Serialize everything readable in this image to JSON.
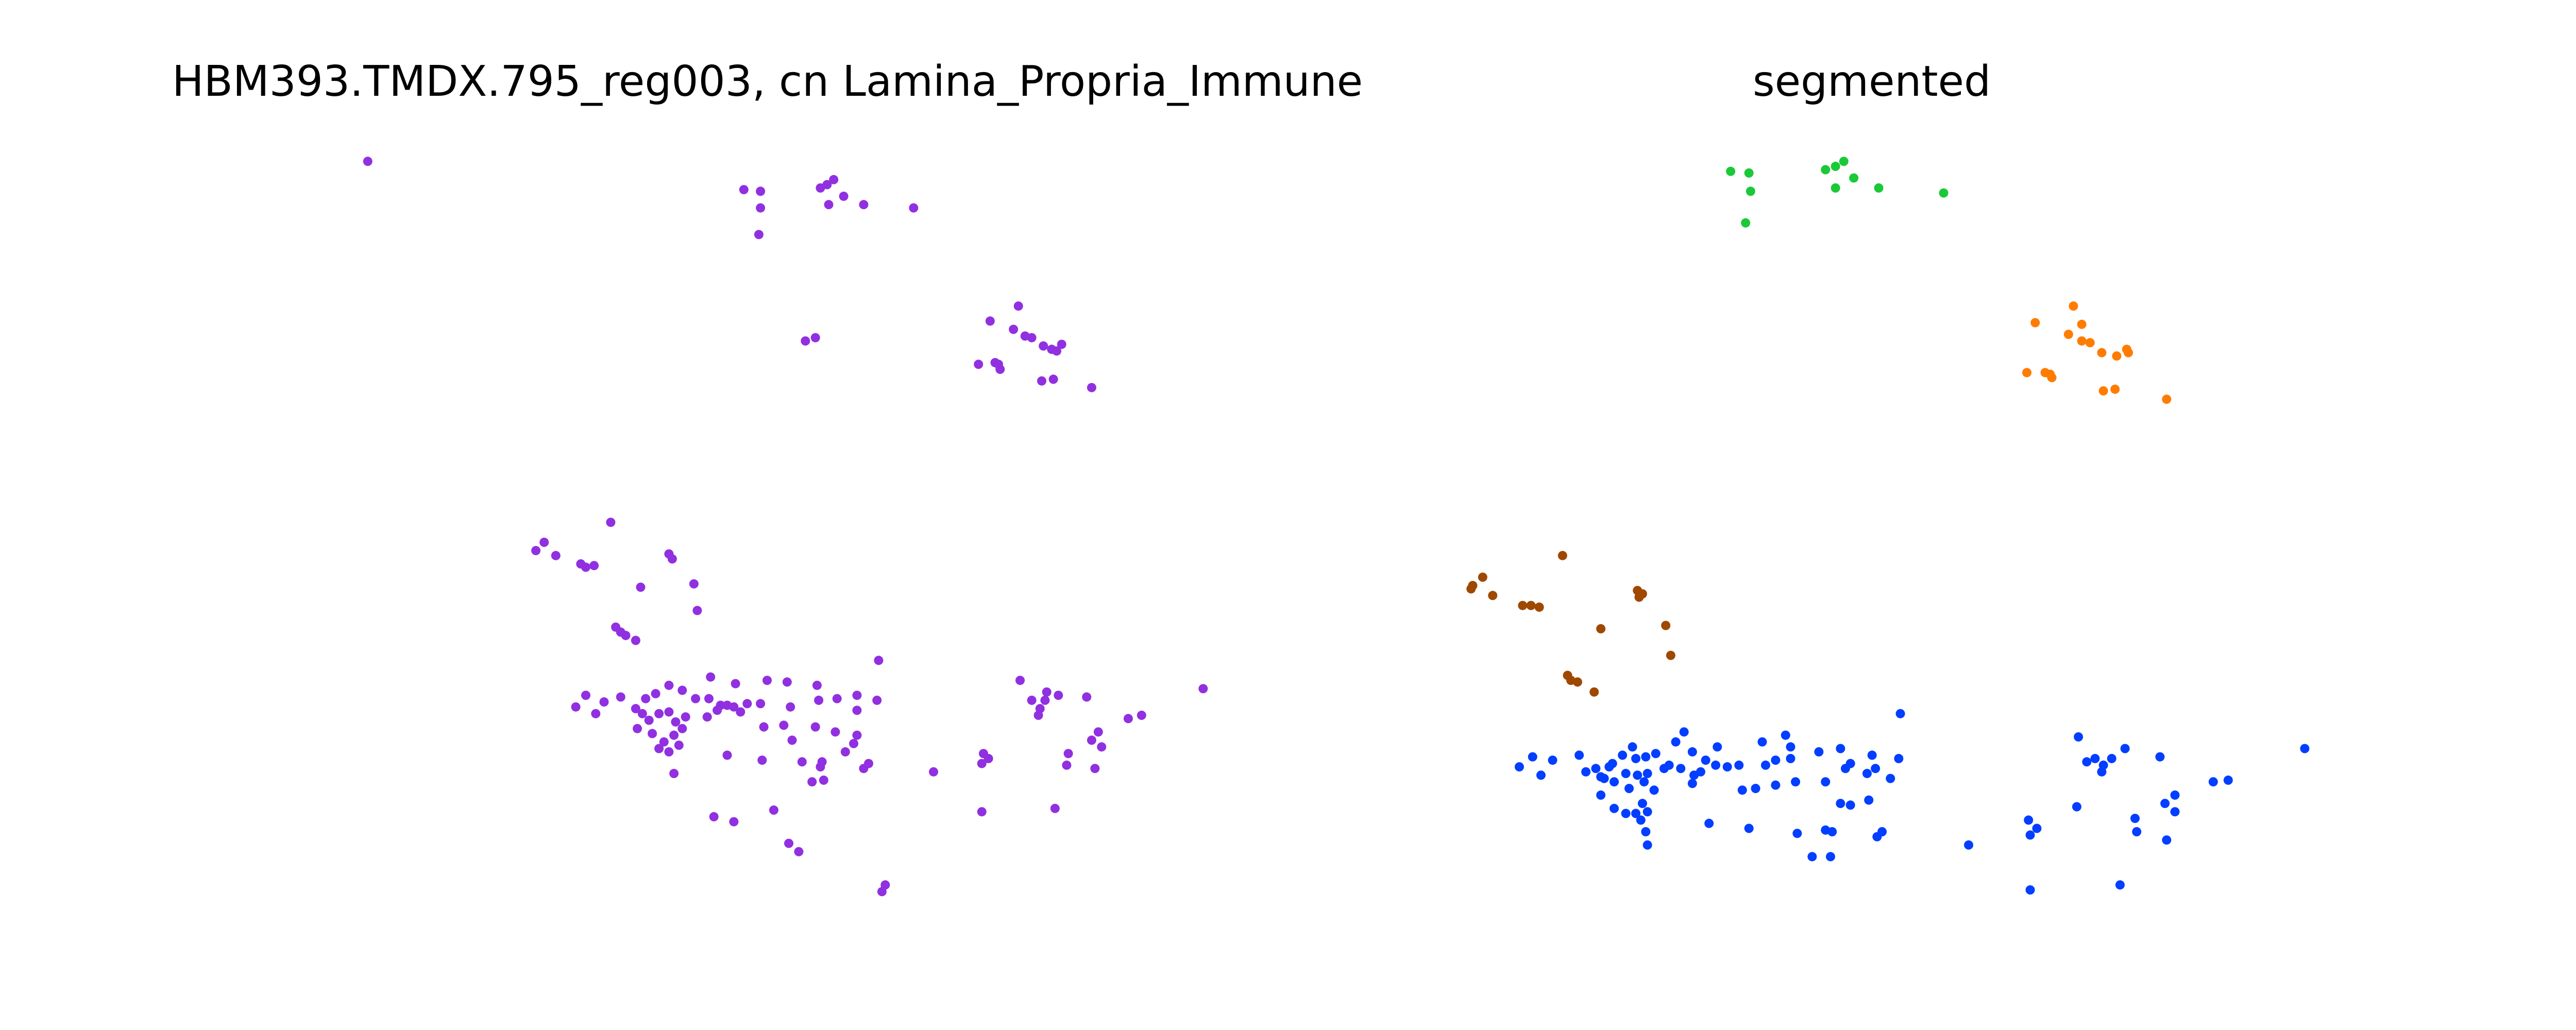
{
  "chart_data": [
    {
      "type": "scatter",
      "title": "HBM393.TMDX.795_reg003, cn Lamina_Propria_Immune",
      "axes_visible": false,
      "grid": false,
      "legend": "none",
      "color": "#9130e0",
      "points": [
        [
          221,
          97
        ],
        [
          447,
          114
        ],
        [
          457,
          115
        ],
        [
          457,
          125
        ],
        [
          456,
          141
        ],
        [
          493,
          113
        ],
        [
          497,
          111
        ],
        [
          501,
          108
        ],
        [
          507,
          118
        ],
        [
          498,
          123
        ],
        [
          519,
          123
        ],
        [
          549,
          125
        ],
        [
          484,
          205
        ],
        [
          490,
          203
        ],
        [
          612,
          184
        ],
        [
          595,
          193
        ],
        [
          609,
          198
        ],
        [
          616,
          202
        ],
        [
          620,
          203
        ],
        [
          627,
          208
        ],
        [
          632,
          210
        ],
        [
          638,
          207
        ],
        [
          635,
          211
        ],
        [
          588,
          219
        ],
        [
          598,
          218
        ],
        [
          601,
          222
        ],
        [
          600,
          219
        ],
        [
          626,
          229
        ],
        [
          633,
          228
        ],
        [
          656,
          233
        ],
        [
          367,
          314
        ],
        [
          327,
          326
        ],
        [
          322,
          331
        ],
        [
          334,
          334
        ],
        [
          349,
          339
        ],
        [
          352,
          341
        ],
        [
          357,
          340
        ],
        [
          402,
          333
        ],
        [
          404,
          336
        ],
        [
          385,
          353
        ],
        [
          417,
          351
        ],
        [
          419,
          367
        ],
        [
          370,
          377
        ],
        [
          373,
          380
        ],
        [
          376,
          382
        ],
        [
          382,
          385
        ],
        [
          528,
          397
        ],
        [
          427,
          407
        ],
        [
          442,
          411
        ],
        [
          461,
          409
        ],
        [
          473,
          410
        ],
        [
          491,
          412
        ],
        [
          352,
          418
        ],
        [
          373,
          419
        ],
        [
          388,
          420
        ],
        [
          394,
          417
        ],
        [
          402,
          412
        ],
        [
          410,
          415
        ],
        [
          418,
          420
        ],
        [
          426,
          420
        ],
        [
          433,
          424
        ],
        [
          441,
          425
        ],
        [
          449,
          423
        ],
        [
          457,
          423
        ],
        [
          475,
          425
        ],
        [
          492,
          421
        ],
        [
          503,
          420
        ],
        [
          515,
          418
        ],
        [
          527,
          421
        ],
        [
          346,
          425
        ],
        [
          358,
          429
        ],
        [
          363,
          422
        ],
        [
          382,
          426
        ],
        [
          386,
          429
        ],
        [
          390,
          433
        ],
        [
          396,
          429
        ],
        [
          402,
          428
        ],
        [
          406,
          434
        ],
        [
          412,
          431
        ],
        [
          425,
          431
        ],
        [
          431,
          427
        ],
        [
          437,
          424
        ],
        [
          445,
          428
        ],
        [
          459,
          437
        ],
        [
          471,
          436
        ],
        [
          490,
          437
        ],
        [
          502,
          440
        ],
        [
          515,
          427
        ],
        [
          515,
          442
        ],
        [
          383,
          438
        ],
        [
          392,
          441
        ],
        [
          399,
          446
        ],
        [
          405,
          442
        ],
        [
          410,
          438
        ],
        [
          396,
          450
        ],
        [
          402,
          452
        ],
        [
          408,
          448
        ],
        [
          476,
          445
        ],
        [
          437,
          454
        ],
        [
          458,
          457
        ],
        [
          482,
          458
        ],
        [
          494,
          458
        ],
        [
          493,
          461
        ],
        [
          513,
          447
        ],
        [
          508,
          452
        ],
        [
          522,
          459
        ],
        [
          519,
          462
        ],
        [
          405,
          465
        ],
        [
          488,
          470
        ],
        [
          495,
          469
        ],
        [
          561,
          464
        ],
        [
          723,
          414
        ],
        [
          613,
          409
        ],
        [
          629,
          416
        ],
        [
          636,
          418
        ],
        [
          620,
          421
        ],
        [
          625,
          426
        ],
        [
          628,
          421
        ],
        [
          624,
          430
        ],
        [
          653,
          419
        ],
        [
          686,
          430
        ],
        [
          678,
          432
        ],
        [
          660,
          440
        ],
        [
          656,
          445
        ],
        [
          662,
          449
        ],
        [
          591,
          453
        ],
        [
          594,
          456
        ],
        [
          590,
          459
        ],
        [
          642,
          453
        ],
        [
          641,
          460
        ],
        [
          658,
          462
        ],
        [
          590,
          488
        ],
        [
          634,
          486
        ],
        [
          465,
          487
        ],
        [
          429,
          491
        ],
        [
          441,
          494
        ],
        [
          474,
          507
        ],
        [
          480,
          512
        ],
        [
          532,
          532
        ],
        [
          530,
          536
        ]
      ]
    },
    {
      "type": "scatter",
      "title": "segmented",
      "axes_visible": false,
      "grid": false,
      "legend": "none",
      "series": [
        {
          "color": "#1ac938",
          "points": [
            [
              1040,
              103
            ],
            [
              1051,
              104
            ],
            [
              1052,
              115
            ],
            [
              1049,
              134
            ],
            [
              1097,
              102
            ],
            [
              1103,
              100
            ],
            [
              1108,
              97
            ],
            [
              1114,
              107
            ],
            [
              1103,
              113
            ],
            [
              1129,
              113
            ],
            [
              1168,
              116
            ]
          ]
        },
        {
          "color": "#ff7c00",
          "points": [
            [
              1246,
              184
            ],
            [
              1223,
              194
            ],
            [
              1251,
              195
            ],
            [
              1243,
              201
            ],
            [
              1251,
              205
            ],
            [
              1256,
              206
            ],
            [
              1263,
              212
            ],
            [
              1272,
              214
            ],
            [
              1278,
              210
            ],
            [
              1279,
              212
            ],
            [
              1218,
              224
            ],
            [
              1229,
              224
            ],
            [
              1233,
              227
            ],
            [
              1232,
              225
            ],
            [
              1264,
              235
            ],
            [
              1271,
              234
            ],
            [
              1302,
              240
            ]
          ]
        },
        {
          "color": "#8b2be2",
          "points": []
        },
        {
          "color": "#9f4800",
          "points": [
            [
              939,
              334
            ],
            [
              891,
              347
            ],
            [
              885,
              352
            ],
            [
              884,
              354
            ],
            [
              897,
              358
            ],
            [
              915,
              364
            ],
            [
              920,
              364
            ],
            [
              925,
              365
            ],
            [
              984,
              355
            ],
            [
              987,
              357
            ],
            [
              985,
              359
            ],
            [
              962,
              378
            ],
            [
              1001,
              376
            ],
            [
              1004,
              394
            ],
            [
              942,
              406
            ],
            [
              944,
              409
            ],
            [
              948,
              410
            ],
            [
              958,
              416
            ]
          ]
        },
        {
          "color": "#023eff",
          "points": [
            [
              1142,
              429
            ],
            [
              1385,
              450
            ],
            [
              1249,
              443
            ],
            [
              1012,
              440
            ],
            [
              1032,
              449
            ],
            [
              1059,
              446
            ],
            [
              1073,
              442
            ],
            [
              1093,
              452
            ],
            [
              1106,
              450
            ],
            [
              1076,
              449
            ],
            [
              1125,
              454
            ],
            [
              1127,
              462
            ],
            [
              1141,
              456
            ],
            [
              1076,
              456
            ],
            [
              1007,
              446
            ],
            [
              981,
              449
            ],
            [
              975,
              454
            ],
            [
              969,
              459
            ],
            [
              983,
              456
            ],
            [
              989,
              455
            ],
            [
              995,
              453
            ],
            [
              1017,
              452
            ],
            [
              1003,
              460
            ],
            [
              1000,
              462
            ],
            [
              1025,
              457
            ],
            [
              1031,
              460
            ],
            [
              1038,
              461
            ],
            [
              1045,
              460
            ],
            [
              1022,
              464
            ],
            [
              1018,
              466
            ],
            [
              1010,
              462
            ],
            [
              1061,
              460
            ],
            [
              1067,
              457
            ],
            [
              1109,
              462
            ],
            [
              1112,
              459
            ],
            [
              1122,
              465
            ],
            [
              1136,
              468
            ],
            [
              913,
              461
            ],
            [
              921,
              455
            ],
            [
              933,
              457
            ],
            [
              949,
              454
            ],
            [
              959,
              462
            ],
            [
              967,
              461
            ],
            [
              964,
              468
            ],
            [
              953,
              464
            ],
            [
              962,
              467
            ],
            [
              970,
              470
            ],
            [
              977,
              465
            ],
            [
              984,
              466
            ],
            [
              990,
              465
            ],
            [
              979,
              474
            ],
            [
              988,
              470
            ],
            [
              994,
              475
            ],
            [
              987,
              483
            ],
            [
              1017,
              471
            ],
            [
              1047,
              475
            ],
            [
              1055,
              474
            ],
            [
              1067,
              472
            ],
            [
              1079,
              470
            ],
            [
              1097,
              470
            ],
            [
              1106,
              483
            ],
            [
              1112,
              484
            ],
            [
              1123,
              481
            ],
            [
              926,
              466
            ],
            [
              962,
              478
            ],
            [
              970,
              486
            ],
            [
              977,
              489
            ],
            [
              983,
              489
            ],
            [
              990,
              488
            ],
            [
              986,
              493
            ],
            [
              1027,
              495
            ],
            [
              1051,
              498
            ],
            [
              1080,
              501
            ],
            [
              1097,
              499
            ],
            [
              1101,
              500
            ],
            [
              1128,
              503
            ],
            [
              1131,
              500
            ],
            [
              989,
              500
            ],
            [
              990,
              508
            ],
            [
              1089,
              515
            ],
            [
              1100,
              515
            ],
            [
              1183,
              508
            ],
            [
              1219,
              493
            ],
            [
              1224,
              498
            ],
            [
              1220,
              502
            ],
            [
              1248,
              485
            ],
            [
              1283,
              492
            ],
            [
              1284,
              500
            ],
            [
              1301,
              483
            ],
            [
              1307,
              478
            ],
            [
              1307,
              488
            ],
            [
              1302,
              505
            ],
            [
              1259,
              456
            ],
            [
              1264,
              460
            ],
            [
              1263,
              464
            ],
            [
              1269,
              456
            ],
            [
              1277,
              450
            ],
            [
              1298,
              455
            ],
            [
              1330,
              470
            ],
            [
              1339,
              469
            ],
            [
              1220,
              535
            ],
            [
              1274,
              532
            ],
            [
              1254,
              458
            ]
          ]
        }
      ]
    }
  ]
}
